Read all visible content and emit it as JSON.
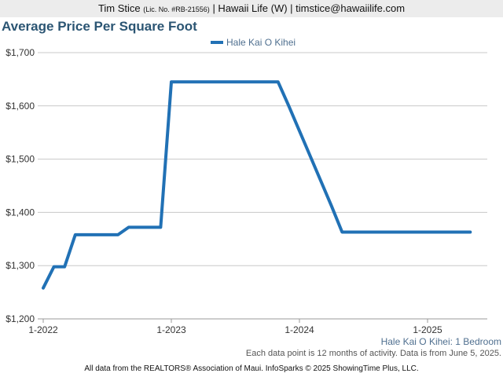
{
  "header": {
    "agent_name": "Tim Stice",
    "license": "(Lic. No. #RB-21556)",
    "rest": "| Hawaii Life (W) | timstice@hawaiilife.com"
  },
  "chart_data": {
    "type": "line",
    "title": "Average Price Per Square Foot",
    "xlabel": "",
    "ylabel": "",
    "ylim": [
      1200,
      1700
    ],
    "y_ticks": [
      "$1,200",
      "$1,300",
      "$1,400",
      "$1,500",
      "$1,600",
      "$1,700"
    ],
    "x_ticks": [
      "1-2022",
      "1-2023",
      "1-2024",
      "1-2025"
    ],
    "grid": true,
    "legend_position": "top-center",
    "series": [
      {
        "name": "Hale Kai O Kihei",
        "color": "#2171b5",
        "x": [
          "2022-01",
          "2022-02",
          "2022-03",
          "2022-04",
          "2022-05",
          "2022-06",
          "2022-07",
          "2022-08",
          "2022-09",
          "2022-10",
          "2022-11",
          "2022-12",
          "2023-01",
          "2023-02",
          "2023-03",
          "2023-04",
          "2023-05",
          "2023-06",
          "2023-07",
          "2023-08",
          "2023-09",
          "2023-10",
          "2023-11",
          "2023-12",
          "2024-01",
          "2024-02",
          "2024-03",
          "2024-04",
          "2024-05",
          "2024-06",
          "2024-07",
          "2024-08",
          "2024-09",
          "2024-10",
          "2024-11",
          "2024-12",
          "2025-01",
          "2025-02",
          "2025-03",
          "2025-04",
          "2025-05"
        ],
        "values": [
          1258,
          1298,
          1298,
          1358,
          1358,
          1358,
          1358,
          1358,
          1372,
          1372,
          1372,
          1372,
          1645,
          1645,
          1645,
          1645,
          1645,
          1645,
          1645,
          1645,
          1645,
          1645,
          1645,
          1600,
          1553,
          1506,
          1459,
          1412,
          1363,
          1363,
          1363,
          1363,
          1363,
          1363,
          1363,
          1363,
          1363,
          1363,
          1363,
          1363,
          1363
        ]
      }
    ]
  },
  "captions": {
    "line1": "Hale Kai O Kihei: 1 Bedroom",
    "line2": "Each data point is 12 months of activity. Data is from June 5, 2025."
  },
  "footer": {
    "text": "All data from the REALTORS® Association of Maui. InfoSparks © 2025 ShowingTime Plus, LLC."
  }
}
